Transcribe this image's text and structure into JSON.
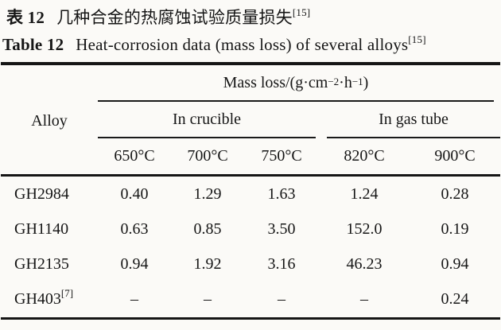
{
  "colors": {
    "paper_background": "#fbfaf7",
    "ink": "#161616",
    "rule": "#151515"
  },
  "captions": {
    "zh": {
      "label": "表 12",
      "text": "几种合金的热腐蚀试验质量损失",
      "ref": "[15]"
    },
    "en": {
      "label": "Table 12",
      "text": "Heat-corrosion data (mass loss) of several alloys",
      "ref": "[15]"
    }
  },
  "table": {
    "unit": {
      "prefix": "Mass loss/(g·cm",
      "sup1": "−2",
      "mid": "·h",
      "sup2": "−1",
      "suffix": ")"
    },
    "alloy_header": "Alloy",
    "groups": [
      {
        "label": "In crucible"
      },
      {
        "label": "In gas tube"
      }
    ],
    "temp_headers": [
      "650°C",
      "700°C",
      "750°C",
      "820°C",
      "900°C"
    ],
    "rows": [
      {
        "alloy": "GH2984",
        "sup": "",
        "values": [
          "0.40",
          "1.29",
          "1.63",
          "1.24",
          "0.28"
        ]
      },
      {
        "alloy": "GH1140",
        "sup": "",
        "values": [
          "0.63",
          "0.85",
          "3.50",
          "152.0",
          "0.19"
        ]
      },
      {
        "alloy": "GH2135",
        "sup": "",
        "values": [
          "0.94",
          "1.92",
          "3.16",
          "46.23",
          "0.94"
        ]
      },
      {
        "alloy": "GH403",
        "sup": "[7]",
        "values": [
          "–",
          "–",
          "–",
          "–",
          "0.24"
        ]
      }
    ]
  }
}
